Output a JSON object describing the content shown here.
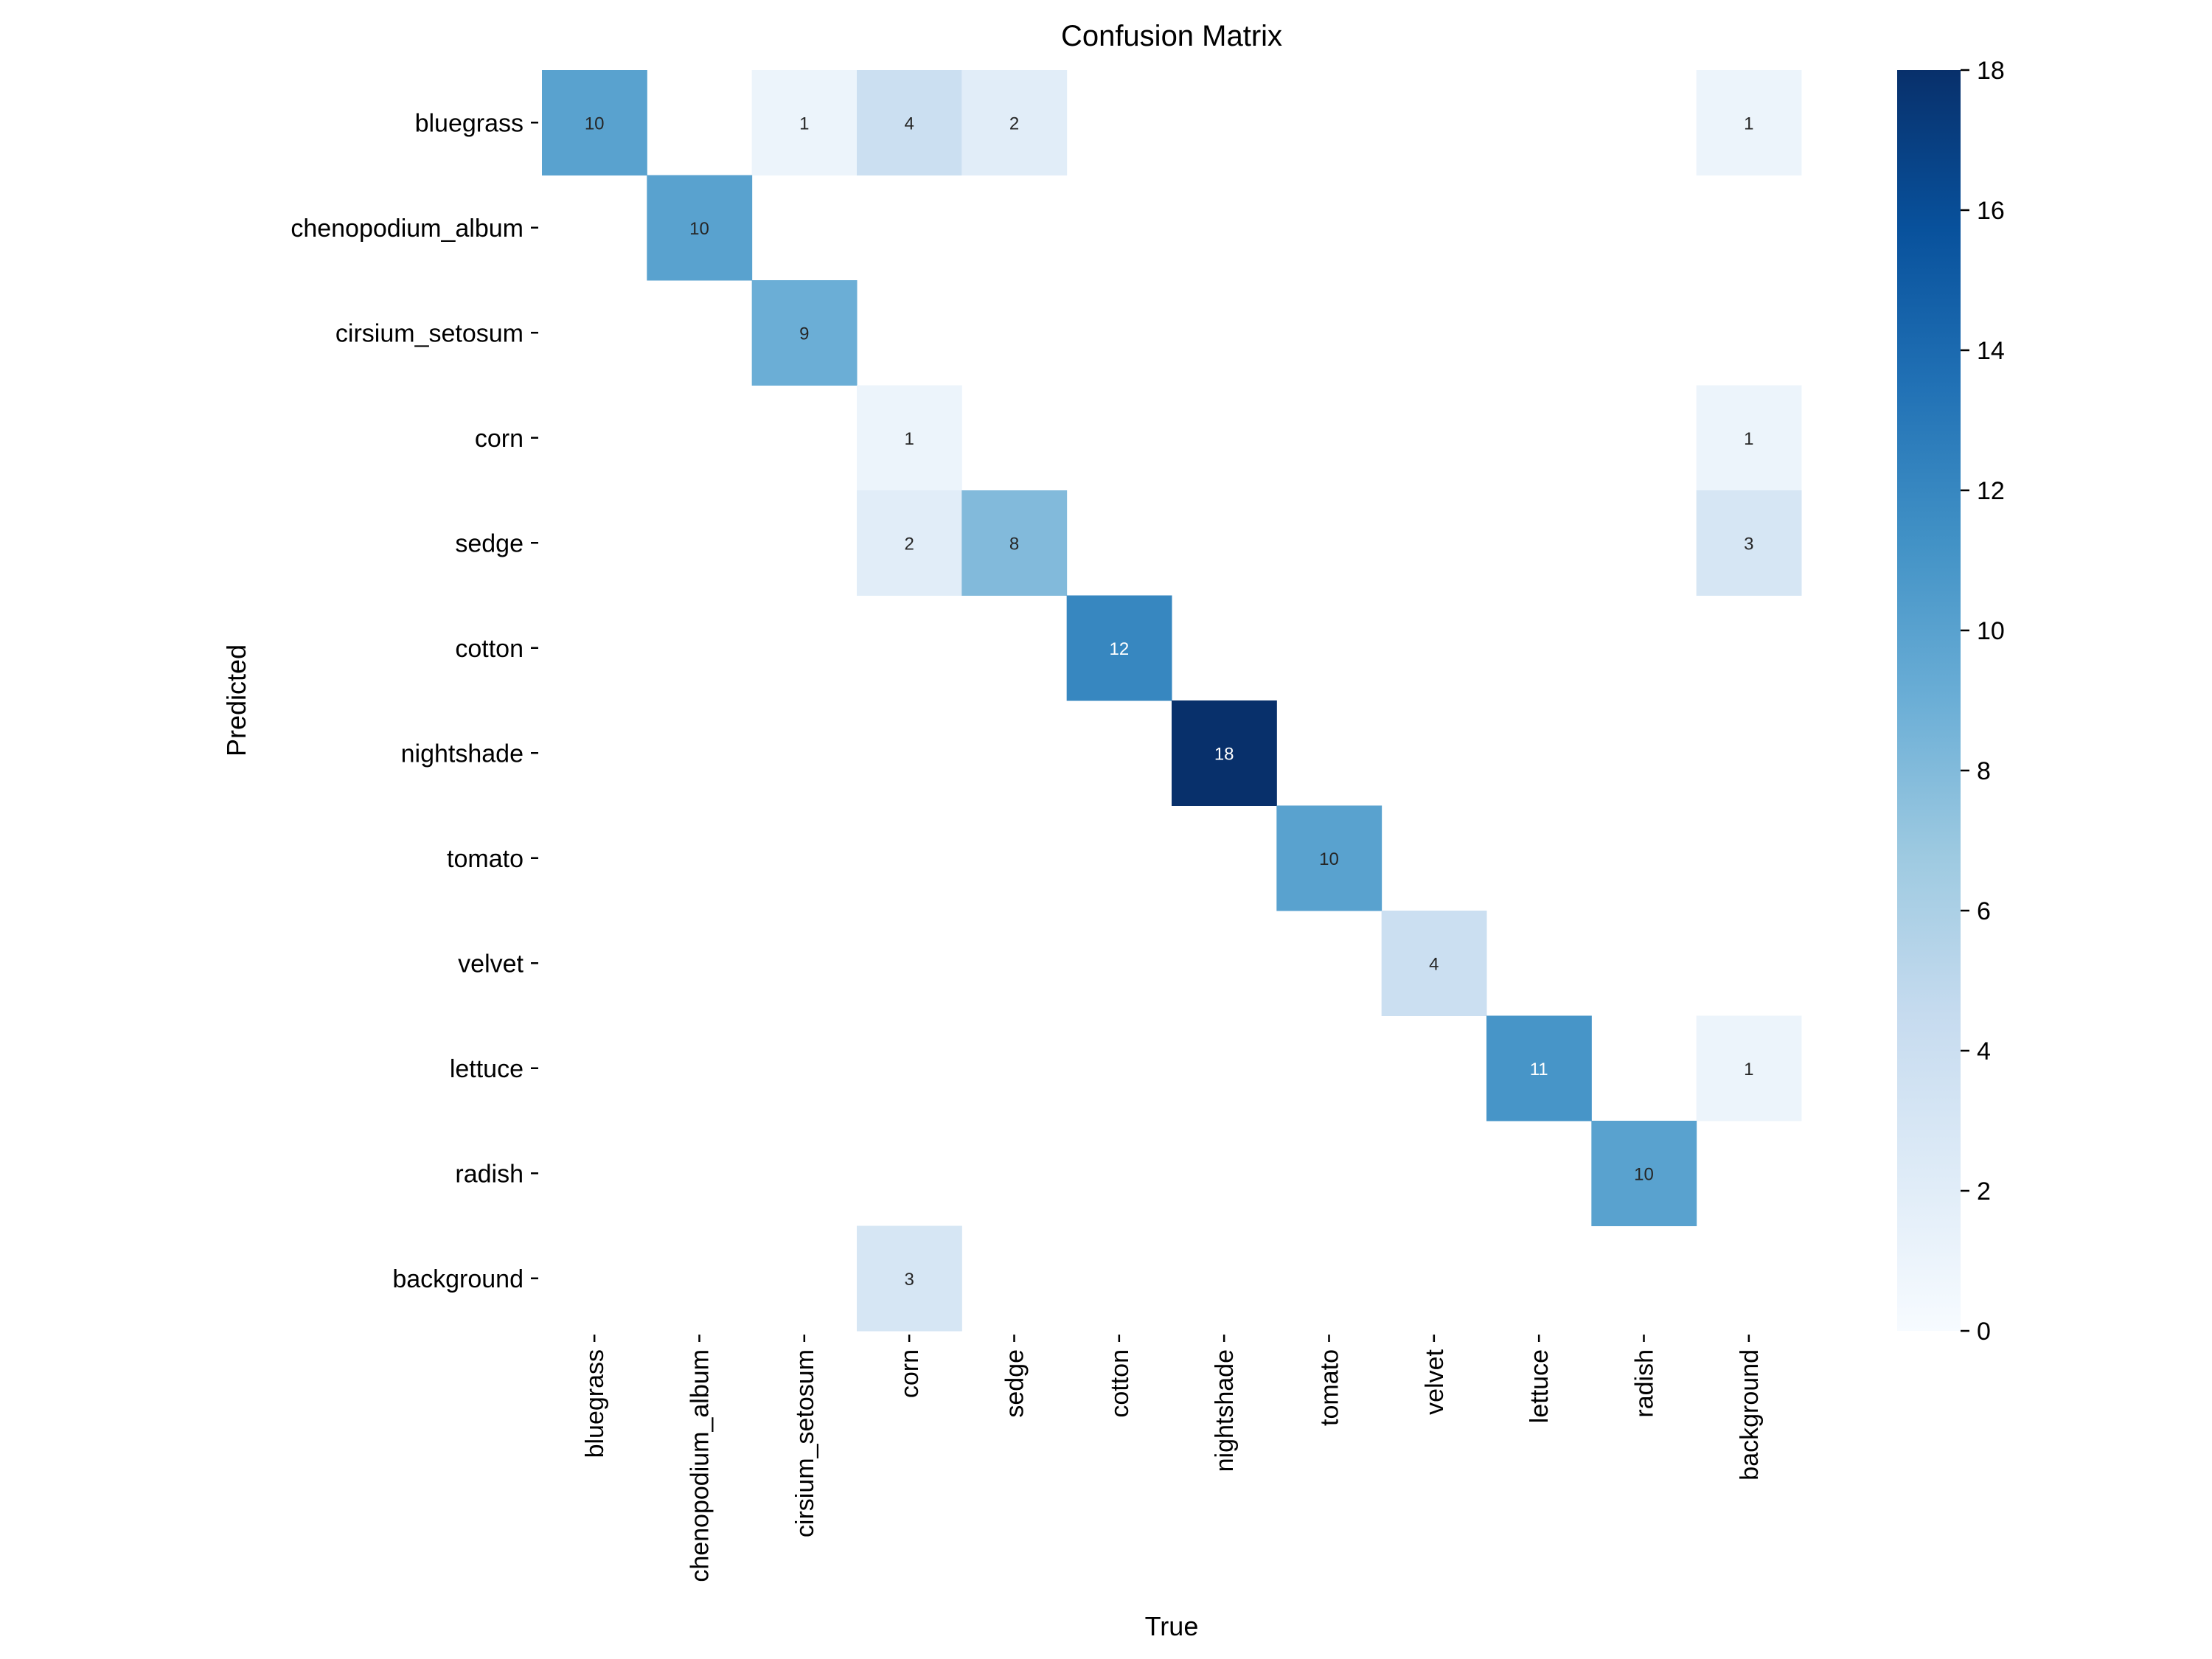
{
  "chart_data": {
    "type": "heatmap",
    "title": "Confusion Matrix",
    "xlabel": "True",
    "ylabel": "Predicted",
    "x_categories": [
      "bluegrass",
      "chenopodium_album",
      "cirsium_setosum",
      "corn",
      "sedge",
      "cotton",
      "nightshade",
      "tomato",
      "velvet",
      "lettuce",
      "radish",
      "background"
    ],
    "y_categories": [
      "bluegrass",
      "chenopodium_album",
      "cirsium_setosum",
      "corn",
      "sedge",
      "cotton",
      "nightshade",
      "tomato",
      "velvet",
      "lettuce",
      "radish",
      "background"
    ],
    "matrix": [
      [
        10,
        0,
        1,
        4,
        2,
        0,
        0,
        0,
        0,
        0,
        0,
        1
      ],
      [
        0,
        10,
        0,
        0,
        0,
        0,
        0,
        0,
        0,
        0,
        0,
        0
      ],
      [
        0,
        0,
        9,
        0,
        0,
        0,
        0,
        0,
        0,
        0,
        0,
        0
      ],
      [
        0,
        0,
        0,
        1,
        0,
        0,
        0,
        0,
        0,
        0,
        0,
        1
      ],
      [
        0,
        0,
        0,
        2,
        8,
        0,
        0,
        0,
        0,
        0,
        0,
        3
      ],
      [
        0,
        0,
        0,
        0,
        0,
        12,
        0,
        0,
        0,
        0,
        0,
        0
      ],
      [
        0,
        0,
        0,
        0,
        0,
        0,
        18,
        0,
        0,
        0,
        0,
        0
      ],
      [
        0,
        0,
        0,
        0,
        0,
        0,
        0,
        10,
        0,
        0,
        0,
        0
      ],
      [
        0,
        0,
        0,
        0,
        0,
        0,
        0,
        0,
        4,
        0,
        0,
        0
      ],
      [
        0,
        0,
        0,
        0,
        0,
        0,
        0,
        0,
        0,
        11,
        0,
        1
      ],
      [
        0,
        0,
        0,
        0,
        0,
        0,
        0,
        0,
        0,
        0,
        10,
        0
      ],
      [
        0,
        0,
        0,
        3,
        0,
        0,
        0,
        0,
        0,
        0,
        0,
        0
      ]
    ],
    "zero_cells_shown": false,
    "colormap": "Blues",
    "color_range": [
      0,
      18
    ],
    "colorbar_ticks": [
      0,
      2,
      4,
      6,
      8,
      10,
      12,
      14,
      16,
      18
    ]
  }
}
